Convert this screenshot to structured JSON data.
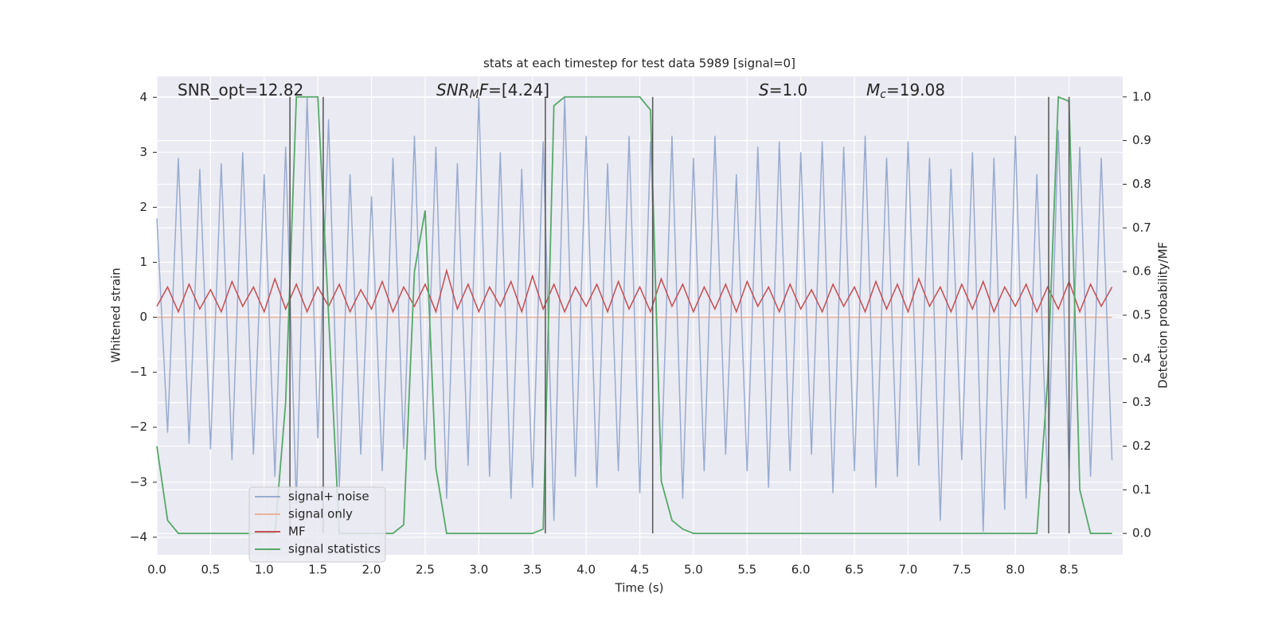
{
  "chart_data": {
    "type": "line",
    "title": "stats at each timestep for test data 5989 [signal=0]",
    "x_label": "Time (s)",
    "y_label": "Whitened strain",
    "y2_label": "Detection probability/MF",
    "annotations": [
      [
        "SNR_opt=12.82"
      ],
      [
        "SNR",
        "M",
        "F",
        "=[4.24]"
      ],
      [
        "S",
        "=1.0"
      ],
      [
        "M",
        "c",
        "=19.08"
      ]
    ],
    "xlim": [
      0,
      9.0
    ],
    "ylim": [
      -4.32,
      4.38
    ],
    "y2lim": [
      -0.049,
      1.047
    ],
    "xticks": [
      {
        "value": 0,
        "label": "0.0"
      },
      0.5,
      {
        "value": 1,
        "label": "1.0"
      },
      1.5,
      {
        "value": 2,
        "label": "2.0"
      },
      2.5,
      {
        "value": 3,
        "label": "3.0"
      },
      3.5,
      {
        "value": 4,
        "label": "4.0"
      },
      4.5,
      {
        "value": 5,
        "label": "5.0"
      },
      5.5,
      {
        "value": 6,
        "label": "6.0"
      },
      6.5,
      {
        "value": 7,
        "label": "7.0"
      },
      7.5,
      {
        "value": 8,
        "label": "8.0"
      },
      8.5
    ],
    "yticks": [
      {
        "value": -4,
        "label": "−4"
      },
      {
        "value": -3,
        "label": "−3"
      },
      {
        "value": -2,
        "label": "−2"
      },
      {
        "value": -1,
        "label": "−1"
      },
      0,
      1,
      2,
      3,
      4
    ],
    "y2ticks": [
      {
        "value": 0,
        "label": "0.0"
      },
      0.1,
      0.2,
      0.3,
      0.4,
      0.5,
      0.6,
      0.7,
      0.8,
      0.9,
      {
        "value": 1,
        "label": "1.0"
      }
    ],
    "grid": true,
    "x": [
      0.0,
      0.1,
      0.2,
      0.3,
      0.4,
      0.5,
      0.6,
      0.7,
      0.8,
      0.9,
      1.0,
      1.1,
      1.2,
      1.3,
      1.4,
      1.5,
      1.6,
      1.7,
      1.8,
      1.9,
      2.0,
      2.1,
      2.2,
      2.3,
      2.4,
      2.5,
      2.6,
      2.7,
      2.8,
      2.9,
      3.0,
      3.1,
      3.2,
      3.3,
      3.4,
      3.5,
      3.6,
      3.7,
      3.8,
      3.9,
      4.0,
      4.1,
      4.2,
      4.3,
      4.4,
      4.5,
      4.6,
      4.7,
      4.8,
      4.9,
      5.0,
      5.1,
      5.2,
      5.3,
      5.4,
      5.5,
      5.6,
      5.7,
      5.8,
      5.9,
      6.0,
      6.1,
      6.2,
      6.3,
      6.4,
      6.5,
      6.6,
      6.7,
      6.8,
      6.9,
      7.0,
      7.1,
      7.2,
      7.3,
      7.4,
      7.5,
      7.6,
      7.7,
      7.8,
      7.9,
      8.0,
      8.1,
      8.2,
      8.3,
      8.4,
      8.5,
      8.6,
      8.7,
      8.8,
      8.9
    ],
    "series": [
      {
        "name": "signal+ noise",
        "color": "#9aabd0",
        "values": [
          1.8,
          -2.1,
          2.9,
          -2.3,
          2.7,
          -2.4,
          2.8,
          -2.6,
          3.0,
          -2.5,
          2.6,
          -2.9,
          3.1,
          -3.4,
          4.0,
          -2.2,
          3.6,
          -3.1,
          2.6,
          -2.5,
          2.2,
          -2.8,
          2.9,
          -2.4,
          3.3,
          -2.6,
          3.1,
          -3.3,
          2.8,
          -2.7,
          4.0,
          -2.9,
          3.0,
          -3.3,
          2.7,
          -3.1,
          3.2,
          -3.7,
          4.0,
          -2.9,
          3.3,
          -3.1,
          2.8,
          -2.8,
          3.3,
          -3.2,
          3.2,
          -2.7,
          3.3,
          -3.3,
          2.9,
          -2.8,
          3.3,
          -2.5,
          2.6,
          -2.8,
          3.1,
          -3.1,
          3.2,
          -2.8,
          3.0,
          -2.5,
          3.2,
          -3.2,
          3.1,
          -2.8,
          3.3,
          -3.1,
          2.9,
          -2.9,
          3.2,
          -2.7,
          2.9,
          -3.7,
          2.7,
          -2.6,
          3.0,
          -3.9,
          2.9,
          -3.5,
          3.3,
          -3.3,
          2.6,
          -3.0,
          3.4,
          -2.8,
          3.1,
          -2.9,
          2.9,
          -2.6
        ]
      },
      {
        "name": "signal only",
        "color": "#eab399",
        "values": [
          0,
          0,
          0,
          0,
          0,
          0,
          0,
          0,
          0,
          0,
          0,
          0,
          0,
          0,
          0,
          0,
          0,
          0,
          0,
          0,
          0,
          0,
          0,
          0,
          0,
          0,
          0,
          0,
          0,
          0,
          0,
          0,
          0,
          0,
          0,
          0,
          0,
          0,
          0,
          0,
          0,
          0,
          0,
          0,
          0,
          0,
          0,
          0,
          0,
          0,
          0,
          0,
          0,
          0,
          0,
          0,
          0,
          0,
          0,
          0,
          0,
          0,
          0,
          0,
          0,
          0,
          0,
          0,
          0,
          0,
          0,
          0,
          0,
          0,
          0,
          0,
          0,
          0,
          0,
          0,
          0,
          0,
          0,
          0,
          0,
          0,
          0,
          0,
          0,
          0
        ]
      },
      {
        "name": "MF",
        "color": "#c44e52",
        "values": [
          0.2,
          0.55,
          0.1,
          0.6,
          0.15,
          0.5,
          0.1,
          0.65,
          0.2,
          0.55,
          0.1,
          0.7,
          0.15,
          0.6,
          0.1,
          0.55,
          0.2,
          0.6,
          0.1,
          0.5,
          0.15,
          0.65,
          0.1,
          0.55,
          0.2,
          0.6,
          0.1,
          0.85,
          0.15,
          0.6,
          0.1,
          0.55,
          0.2,
          0.65,
          0.1,
          0.75,
          0.15,
          0.6,
          0.1,
          0.55,
          0.2,
          0.6,
          0.1,
          0.65,
          0.15,
          0.55,
          0.1,
          0.7,
          0.2,
          0.6,
          0.1,
          0.55,
          0.15,
          0.6,
          0.1,
          0.65,
          0.2,
          0.55,
          0.1,
          0.6,
          0.15,
          0.5,
          0.1,
          0.6,
          0.2,
          0.55,
          0.1,
          0.65,
          0.15,
          0.6,
          0.1,
          0.7,
          0.2,
          0.55,
          0.1,
          0.6,
          0.15,
          0.65,
          0.1,
          0.55,
          0.2,
          0.6,
          0.1,
          0.55,
          0.15,
          0.65,
          0.1,
          0.6,
          0.2,
          0.55
        ]
      },
      {
        "name": "signal statistics",
        "color": "#55a868",
        "axis": "y2",
        "values": [
          0.2,
          0.03,
          0,
          0,
          0,
          0,
          0,
          0,
          0,
          0,
          0,
          0,
          0.3,
          1.0,
          1.0,
          1.0,
          0.5,
          0,
          0,
          0,
          0,
          0,
          0,
          0.02,
          0.6,
          0.74,
          0.15,
          0,
          0,
          0,
          0,
          0,
          0,
          0,
          0,
          0,
          0.01,
          0.98,
          1.0,
          1.0,
          1.0,
          1.0,
          1.0,
          1.0,
          1.0,
          1.0,
          0.97,
          0.12,
          0.03,
          0.01,
          0,
          0,
          0,
          0,
          0,
          0,
          0,
          0,
          0,
          0,
          0,
          0,
          0,
          0,
          0,
          0,
          0,
          0,
          0,
          0,
          0,
          0,
          0,
          0,
          0,
          0,
          0,
          0,
          0,
          0,
          0,
          0,
          0,
          0.35,
          1.0,
          0.99,
          0.1,
          0,
          0,
          0
        ]
      }
    ],
    "vlines": [
      1.24,
      1.55,
      3.62,
      4.62,
      8.31,
      8.5
    ]
  }
}
